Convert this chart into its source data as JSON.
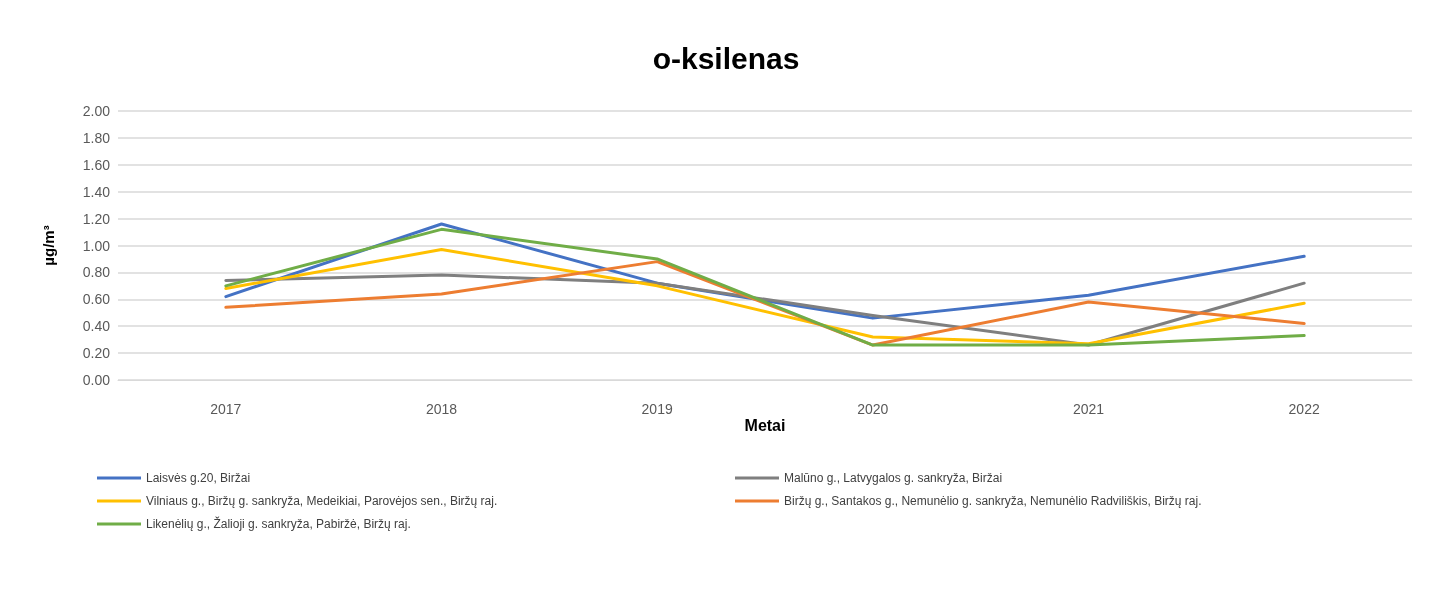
{
  "chart_data": {
    "type": "line",
    "title": "o-ksilenas",
    "xlabel": "Metai",
    "ylabel": "µg/m³",
    "categories": [
      "2017",
      "2018",
      "2019",
      "2020",
      "2021",
      "2022"
    ],
    "series": [
      {
        "name": "Laisvės g.20, Biržai",
        "color": "#4472c4",
        "values": [
          0.62,
          1.16,
          0.72,
          0.46,
          0.63,
          0.92
        ]
      },
      {
        "name": "Malūno g., Latvygalos g. sankryža, Biržai",
        "color": "#7f7f7f",
        "values": [
          0.74,
          0.78,
          0.72,
          0.48,
          0.26,
          0.72
        ]
      },
      {
        "name": "Vilniaus g., Biržų g. sankryža, Medeikiai, Parovėjos sen., Biržų raj.",
        "color": "#ffc000",
        "values": [
          0.68,
          0.97,
          0.7,
          0.32,
          0.27,
          0.57
        ]
      },
      {
        "name": "Biržų g., Santakos g., Nemunėlio g. sankryža, Nemunėlio Radviliškis, Biržų raj.",
        "color": "#ed7d31",
        "values": [
          0.54,
          0.64,
          0.88,
          0.26,
          0.58,
          0.42
        ]
      },
      {
        "name": "Likenėlių g., Žalioji g. sankryža, Pabiržė, Biržų raj.",
        "color": "#70ad47",
        "values": [
          0.7,
          1.12,
          0.9,
          0.26,
          0.26,
          0.33
        ]
      }
    ],
    "ylim": [
      0,
      2
    ],
    "yticks": [
      {
        "value": 0,
        "label": "0.00"
      },
      {
        "value": 0.2,
        "label": "0.20"
      },
      {
        "value": 0.4,
        "label": "0.40"
      },
      {
        "value": 0.6,
        "label": "0.60"
      },
      {
        "value": 0.8,
        "label": "0.80"
      },
      {
        "value": 1,
        "label": "1.00"
      },
      {
        "value": 1.2,
        "label": "1.20"
      },
      {
        "value": 1.4,
        "label": "1.40"
      },
      {
        "value": 1.6,
        "label": "1.60"
      },
      {
        "value": 1.8,
        "label": "1.80"
      },
      {
        "value": 2,
        "label": "2.00"
      }
    ],
    "grid": "y",
    "legend": "bottom",
    "marker": "none",
    "line_style": "solid"
  }
}
